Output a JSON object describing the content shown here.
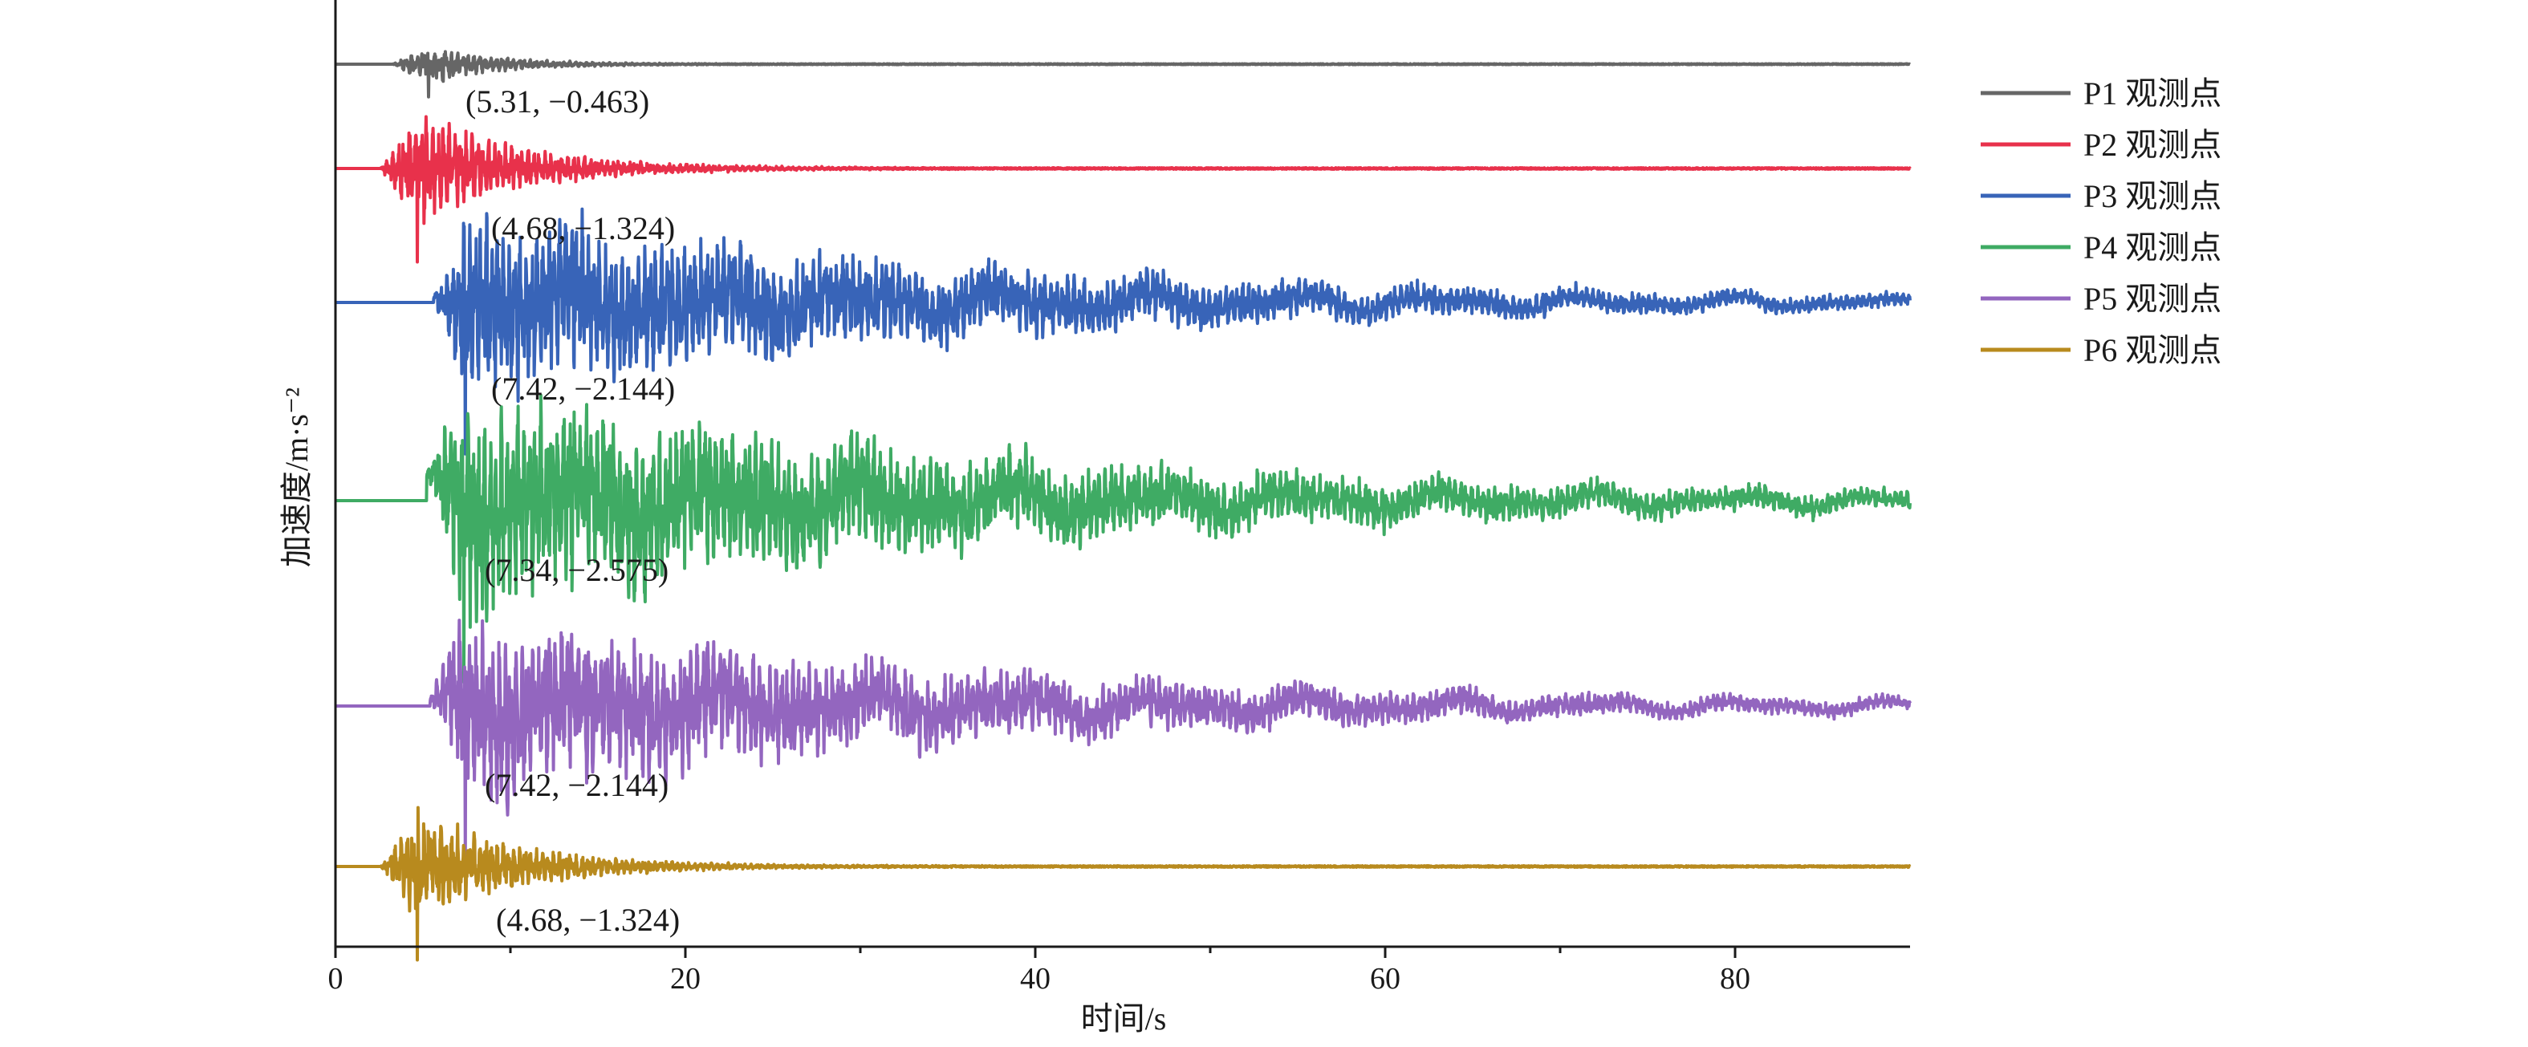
{
  "chart_data": {
    "type": "line",
    "title": "",
    "xlabel": "时间/s",
    "ylabel": "加速度/m·s⁻²",
    "xlim": [
      0,
      90
    ],
    "x_ticks": [
      0,
      20,
      40,
      60,
      80
    ],
    "x_tick_labels": [
      "0",
      "20",
      "40",
      "60",
      "80"
    ],
    "y_ticks_shown": false,
    "grid": false,
    "legend_position": "top-right",
    "series": [
      {
        "name": "P1 观测点",
        "color": "#666666",
        "peak_time": 5.31,
        "peak_value": -0.463,
        "annotation": "(5.31, −0.463)"
      },
      {
        "name": "P2 观测点",
        "color": "#e8314b",
        "peak_time": 4.68,
        "peak_value": -1.324,
        "annotation": "(4.68, −1.324)"
      },
      {
        "name": "P3 观测点",
        "color": "#3864b8",
        "peak_time": 7.42,
        "peak_value": -2.144,
        "annotation": "(7.42, −2.144)"
      },
      {
        "name": "P4 观测点",
        "color": "#3fab64",
        "peak_time": 7.34,
        "peak_value": -2.575,
        "annotation": "(7.34, −2.575)"
      },
      {
        "name": "P5 观测点",
        "color": "#9366bf",
        "peak_time": 7.42,
        "peak_value": -2.144,
        "annotation": "(7.42, −2.144)"
      },
      {
        "name": "P6 观测点",
        "color": "#b88a1e",
        "peak_time": 4.68,
        "peak_value": -1.324,
        "annotation": "(4.68, −1.324)"
      }
    ]
  }
}
